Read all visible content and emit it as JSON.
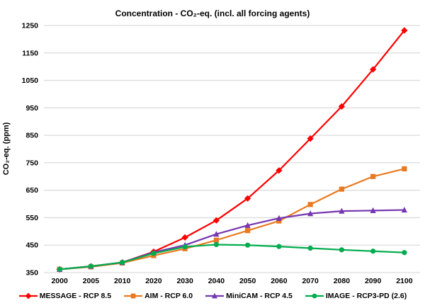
{
  "window": {
    "background": "#FFFFFF",
    "text_color": "#000000"
  },
  "chart_data": {
    "type": "line",
    "title": "Concentration - CO₂-eq. (incl. all forcing agents)",
    "xlabel": "",
    "ylabel": "CO₂-eq. (ppm)",
    "ylim": [
      350,
      1250
    ],
    "yticks": [
      350,
      450,
      550,
      650,
      750,
      850,
      950,
      1050,
      1150,
      1250
    ],
    "grid": "horizontal",
    "gridline_color": "#DCDCDC",
    "legend_position": "bottom",
    "categories": [
      "2000",
      "2005",
      "2010",
      "2020",
      "2030",
      "2040",
      "2050",
      "2060",
      "2070",
      "2080",
      "2090",
      "2100"
    ],
    "series": [
      {
        "name": "MESSAGE - RCP 8.5",
        "color": "#FF0000",
        "marker": "diamond",
        "values": [
          362,
          373,
          387,
          426,
          478,
          540,
          620,
          722,
          838,
          955,
          1090,
          1232
        ]
      },
      {
        "name": "AIM - RCP 6.0",
        "color": "#E87A21",
        "marker": "square",
        "values": [
          362,
          371,
          385,
          412,
          437,
          468,
          503,
          538,
          598,
          654,
          700,
          728
        ]
      },
      {
        "name": "MiniCAM - RCP 4.5",
        "color": "#7636B0",
        "marker": "triangle",
        "values": [
          362,
          373,
          387,
          424,
          450,
          490,
          522,
          548,
          565,
          574,
          576,
          578
        ]
      },
      {
        "name": "IMAGE - RCP3-PD (2.6)",
        "color": "#00AC4E",
        "marker": "circle",
        "values": [
          362,
          373,
          387,
          420,
          444,
          452,
          450,
          445,
          439,
          433,
          428,
          423
        ]
      }
    ]
  }
}
